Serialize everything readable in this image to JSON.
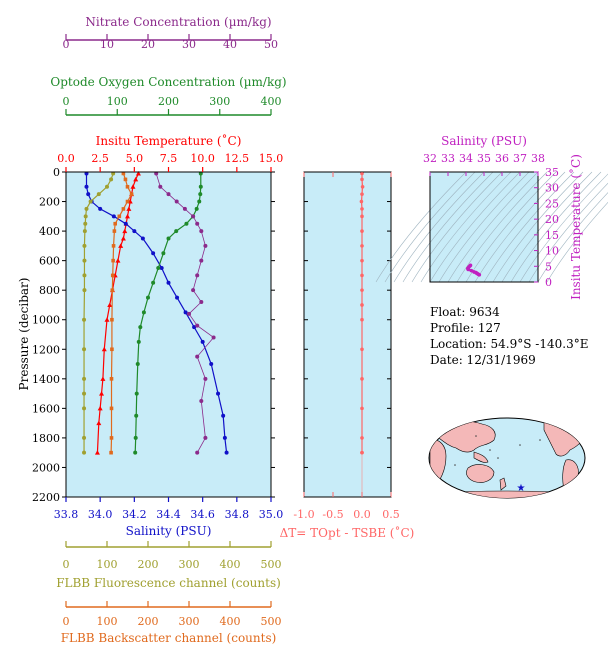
{
  "colors": {
    "nitrate": "#8b2a8b",
    "oxygen": "#1f8a2a",
    "temperature": "#ff0000",
    "salinity": "#1010c8",
    "fluorescence": "#a0a030",
    "backscatter": "#e06a1e",
    "delta_t": "#ff6666",
    "inset_salinity": "#c020c0",
    "plot_bg": "#c8ecf8"
  },
  "info": {
    "float": "Float:  9634",
    "profile": "Profile:  127",
    "location": "Location:  54.9°S  -140.3°E",
    "date": "Date:  12/31/1969"
  },
  "chart_data": [
    {
      "type": "line",
      "panel": "main-profile",
      "ylabel": "Pressure (decibar)",
      "ylim": [
        2200,
        0
      ],
      "yticks": [
        "0",
        "200",
        "400",
        "600",
        "800",
        "1000",
        "1200",
        "1400",
        "1600",
        "1800",
        "2000",
        "2200"
      ],
      "axes": {
        "nitrate": {
          "label": "Nitrate Concentration (µm/kg)",
          "range": [
            0,
            50
          ],
          "ticks": [
            "0",
            "10",
            "20",
            "30",
            "40",
            "50"
          ]
        },
        "oxygen": {
          "label": "Optode Oxygen Concentration (µm/kg)",
          "range": [
            0,
            400
          ],
          "ticks": [
            "0",
            "100",
            "200",
            "300",
            "400"
          ]
        },
        "temperature": {
          "label": "Insitu Temperature (˚C)",
          "range": [
            0,
            15
          ],
          "ticks": [
            "0.0",
            "2.5",
            "5.0",
            "7.5",
            "10.0",
            "12.5",
            "15.0"
          ]
        },
        "salinity": {
          "label": "Salinity (PSU)",
          "range": [
            33.8,
            35.0
          ],
          "ticks": [
            "33.8",
            "34.0",
            "34.2",
            "34.4",
            "34.6",
            "34.8",
            "35.0"
          ]
        },
        "fluorescence": {
          "label": "FLBB Fluorescence channel (counts)",
          "range": [
            0,
            500
          ],
          "ticks": [
            "0",
            "100",
            "200",
            "300",
            "400",
            "500"
          ]
        },
        "backscatter": {
          "label": "FLBB Backscatter channel (counts)",
          "range": [
            0,
            500
          ],
          "ticks": [
            "0",
            "100",
            "200",
            "300",
            "400",
            "500"
          ]
        }
      },
      "series": [
        {
          "key": "temperature",
          "name": "Insitu Temperature (˚C)",
          "x": [
            5.3,
            5.1,
            4.9,
            4.8,
            4.7,
            4.6,
            4.5,
            4.4,
            4.3,
            4.2,
            4.0,
            3.8,
            3.6,
            3.4,
            3.2,
            3.0,
            2.8,
            2.7,
            2.6,
            2.5,
            2.4,
            2.3
          ],
          "y": [
            10,
            50,
            100,
            150,
            200,
            250,
            300,
            350,
            400,
            450,
            500,
            600,
            700,
            800,
            900,
            1000,
            1200,
            1400,
            1500,
            1600,
            1700,
            1900
          ]
        },
        {
          "key": "salinity",
          "name": "Salinity (PSU)",
          "x": [
            33.92,
            33.92,
            33.93,
            33.95,
            34.0,
            34.08,
            34.15,
            34.2,
            34.25,
            34.31,
            34.36,
            34.4,
            34.45,
            34.5,
            34.55,
            34.6,
            34.65,
            34.69,
            34.72,
            34.73,
            34.74
          ],
          "y": [
            10,
            100,
            150,
            200,
            250,
            300,
            350,
            400,
            450,
            550,
            650,
            750,
            850,
            950,
            1050,
            1150,
            1300,
            1500,
            1650,
            1800,
            1900
          ]
        },
        {
          "key": "oxygen",
          "name": "Optode Oxygen Concentration (µm/kg)",
          "x": [
            263,
            263,
            262,
            260,
            255,
            248,
            235,
            215,
            200,
            190,
            180,
            170,
            160,
            152,
            145,
            142,
            140,
            138,
            137,
            136,
            135
          ],
          "y": [
            10,
            100,
            150,
            200,
            250,
            300,
            350,
            400,
            450,
            550,
            650,
            750,
            850,
            950,
            1050,
            1150,
            1300,
            1500,
            1650,
            1800,
            1900
          ]
        },
        {
          "key": "nitrate",
          "name": "Nitrate Concentration (µm/kg)",
          "x": [
            22,
            23,
            25,
            27,
            29,
            31,
            32,
            33,
            34,
            33,
            32,
            31,
            33,
            30,
            32,
            36,
            32,
            34,
            33,
            34,
            32
          ],
          "y": [
            10,
            100,
            150,
            200,
            250,
            300,
            350,
            400,
            500,
            600,
            700,
            800,
            880,
            960,
            1040,
            1120,
            1250,
            1400,
            1550,
            1800,
            1900
          ]
        },
        {
          "key": "fluorescence",
          "name": "FLBB Fluorescence channel (counts)",
          "x": [
            115,
            110,
            100,
            80,
            60,
            50,
            48,
            47,
            46,
            45,
            45,
            45,
            45,
            44,
            44,
            44,
            44,
            44,
            44,
            44
          ],
          "y": [
            10,
            50,
            100,
            150,
            200,
            250,
            300,
            350,
            400,
            500,
            600,
            700,
            800,
            1000,
            1200,
            1400,
            1500,
            1600,
            1800,
            1900
          ]
        },
        {
          "key": "backscatter",
          "name": "FLBB Backscatter channel (counts)",
          "x": [
            140,
            145,
            150,
            160,
            150,
            140,
            130,
            120,
            118,
            116,
            115,
            114,
            113,
            112,
            112,
            111,
            111,
            111,
            110
          ],
          "y": [
            10,
            50,
            100,
            150,
            200,
            250,
            300,
            350,
            400,
            500,
            600,
            700,
            800,
            1000,
            1200,
            1400,
            1600,
            1800,
            1900
          ]
        }
      ]
    },
    {
      "type": "line",
      "panel": "delta-t",
      "xlabel": "ΔT= TOpt - TSBE (˚C)",
      "xlim": [
        -1.0,
        0.5
      ],
      "xticks": [
        "-1.0",
        "-0.5",
        "0.0",
        "0.5"
      ],
      "ylim": [
        2200,
        0
      ],
      "series": [
        {
          "name": "ΔT",
          "x": [
            0.0,
            0.0,
            0.01,
            0.0,
            -0.01,
            0.0,
            0.0,
            0.0,
            0.0,
            0.0,
            0.0,
            0.0,
            0.0,
            0.0,
            0.0,
            0.0,
            0.0,
            0.0,
            0.0,
            0.0
          ],
          "y": [
            10,
            50,
            100,
            150,
            200,
            250,
            300,
            400,
            500,
            600,
            700,
            800,
            900,
            1000,
            1200,
            1400,
            1600,
            1800,
            1900,
            1900
          ]
        }
      ]
    },
    {
      "type": "scatter",
      "panel": "ts-diagram",
      "xlabel": "Salinity (PSU)",
      "ylabel": "Insitu Temperature (˚C)",
      "xlim": [
        32,
        38
      ],
      "ylim": [
        0,
        35
      ],
      "xticks": [
        "32",
        "33",
        "34",
        "35",
        "36",
        "37",
        "38"
      ],
      "yticks": [
        "0",
        "5",
        "10",
        "15",
        "20",
        "25",
        "30",
        "35"
      ],
      "series": [
        {
          "name": "T-S",
          "x": [
            34.25,
            34.2,
            34.15,
            34.1,
            34.12,
            34.3,
            34.45,
            34.55,
            34.6,
            34.65,
            34.7,
            34.74
          ],
          "y": [
            5.3,
            5.0,
            4.7,
            4.3,
            4.0,
            3.6,
            3.2,
            3.0,
            2.8,
            2.6,
            2.4,
            2.3
          ]
        }
      ]
    }
  ]
}
